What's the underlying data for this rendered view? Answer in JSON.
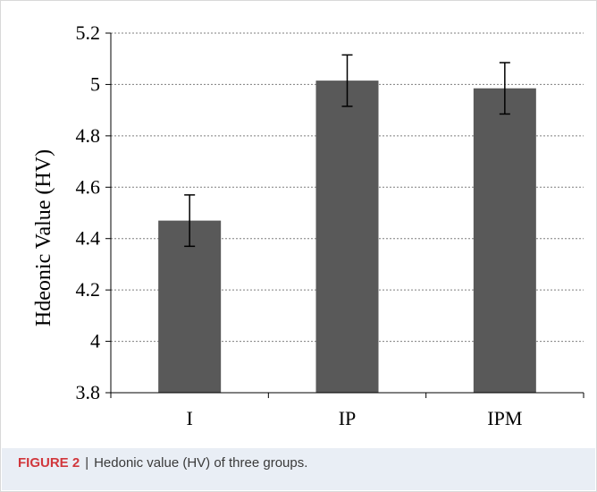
{
  "chart_data": {
    "type": "bar",
    "categories": [
      "I",
      "IP",
      "IPM"
    ],
    "values": [
      4.47,
      5.015,
      4.985
    ],
    "error": [
      0.1,
      0.1,
      0.1
    ],
    "ylabel": "Hdeonic Value (HV)",
    "xlabel": "",
    "ylim": [
      3.8,
      5.2
    ],
    "yticks": [
      3.8,
      4,
      4.2,
      4.4,
      4.6,
      4.8,
      5,
      5.2
    ],
    "ytick_labels": [
      "3.8",
      "4",
      "4.2",
      "4.4",
      "4.6",
      "4.8",
      "5",
      "5.2"
    ],
    "grid": true,
    "bar_color": "#595959"
  },
  "caption": {
    "label": "FIGURE 2",
    "separator": "|",
    "text": "Hedonic value (HV) of three groups."
  }
}
